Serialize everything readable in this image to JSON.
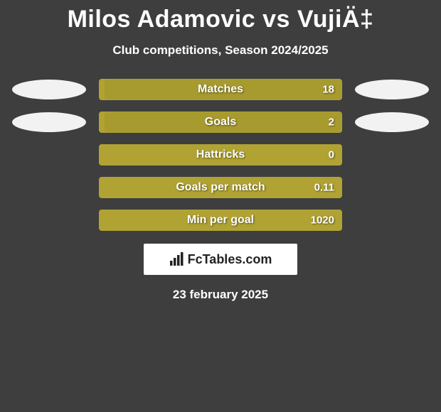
{
  "title": "Milos Adamovic vs VujiÄ‡",
  "subtitle": "Club competitions, Season 2024/2025",
  "date": "23 february 2025",
  "logo_text": "FcTables.com",
  "colors": {
    "background": "#3e3e3e",
    "bar_track": "#b0a333",
    "bar_fill": "#a79a2e",
    "oval_left": "#f2f2f2",
    "oval_right": "#f2f2f2",
    "text": "#ffffff"
  },
  "chart": {
    "type": "bar",
    "rows": [
      {
        "label": "Matches",
        "value": "18",
        "fill_pct": 98,
        "show_left_oval": true,
        "show_right_oval": true
      },
      {
        "label": "Goals",
        "value": "2",
        "fill_pct": 98,
        "show_left_oval": true,
        "show_right_oval": true
      },
      {
        "label": "Hattricks",
        "value": "0",
        "fill_pct": 0,
        "show_left_oval": false,
        "show_right_oval": false
      },
      {
        "label": "Goals per match",
        "value": "0.11",
        "fill_pct": 0,
        "show_left_oval": false,
        "show_right_oval": false
      },
      {
        "label": "Min per goal",
        "value": "1020",
        "fill_pct": 0,
        "show_left_oval": false,
        "show_right_oval": false
      }
    ]
  }
}
